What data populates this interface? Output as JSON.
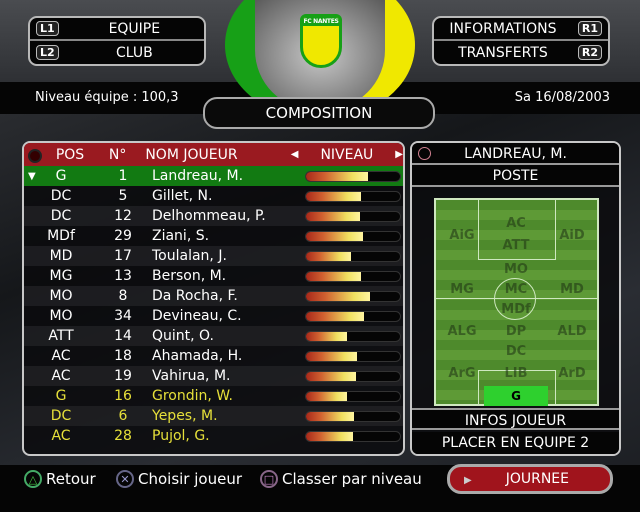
{
  "nav": {
    "left": [
      {
        "key": "L1",
        "label": "EQUIPE"
      },
      {
        "key": "L2",
        "label": "CLUB"
      }
    ],
    "right": [
      {
        "key": "R1",
        "label": "INFORMATIONS"
      },
      {
        "key": "R2",
        "label": "TRANSFERTS"
      }
    ]
  },
  "header": {
    "team_level": "Niveau équipe : 100,3",
    "date": "Sa 16/08/2003",
    "title": "COMPOSITION",
    "crest_text": "FC NANTES"
  },
  "table": {
    "columns": {
      "pos": "POS",
      "num": "N°",
      "name": "NOM JOUEUR",
      "level": "NIVEAU"
    },
    "rows": [
      {
        "pos": "G",
        "num": "1",
        "name": "Landreau, M.",
        "level": 0.66,
        "state": "selected"
      },
      {
        "pos": "DC",
        "num": "5",
        "name": "Gillet, N.",
        "level": 0.59
      },
      {
        "pos": "DC",
        "num": "12",
        "name": "Delhommeau, P.",
        "level": 0.57
      },
      {
        "pos": "MDf",
        "num": "29",
        "name": "Ziani, S.",
        "level": 0.61
      },
      {
        "pos": "MD",
        "num": "17",
        "name": "Toulalan, J.",
        "level": 0.48
      },
      {
        "pos": "MG",
        "num": "13",
        "name": "Berson, M.",
        "level": 0.59
      },
      {
        "pos": "MO",
        "num": "8",
        "name": "Da Rocha, F.",
        "level": 0.68
      },
      {
        "pos": "MO",
        "num": "34",
        "name": "Devineau, C.",
        "level": 0.62
      },
      {
        "pos": "ATT",
        "num": "14",
        "name": "Quint, O.",
        "level": 0.44
      },
      {
        "pos": "AC",
        "num": "18",
        "name": "Ahamada, H.",
        "level": 0.54
      },
      {
        "pos": "AC",
        "num": "19",
        "name": "Vahirua, M.",
        "level": 0.53
      },
      {
        "pos": "G",
        "num": "16",
        "name": "Grondin, W.",
        "level": 0.44,
        "state": "substitute"
      },
      {
        "pos": "DC",
        "num": "6",
        "name": "Yepes, M.",
        "level": 0.51,
        "state": "substitute"
      },
      {
        "pos": "AC",
        "num": "28",
        "name": "Pujol, G.",
        "level": 0.5,
        "state": "substitute"
      }
    ]
  },
  "side": {
    "player": "LANDREAU, M.",
    "poste": "POSTE",
    "infos": "INFOS JOUEUR",
    "placer": "PLACER EN EQUIPE 2",
    "zones": {
      "ac": "AC",
      "aig": "AiG",
      "aid": "AiD",
      "att": "ATT",
      "mo": "MO",
      "mg": "MG",
      "mc": "MC",
      "md": "MD",
      "mdf": "MDf",
      "alg": "ALG",
      "dp": "DP",
      "ald": "ALD",
      "dc": "DC",
      "arg": "ArG",
      "lib": "LIB",
      "ard": "ArD",
      "g": "G"
    },
    "selected_zone": "G"
  },
  "footer": {
    "back": "Retour",
    "choose": "Choisir joueur",
    "sort": "Classer par niveau",
    "next": "JOURNEE"
  },
  "colors": {
    "header_red": "#9a1a20",
    "selected_green": "#127a12",
    "substitute_yellow": "#e6e03a"
  }
}
